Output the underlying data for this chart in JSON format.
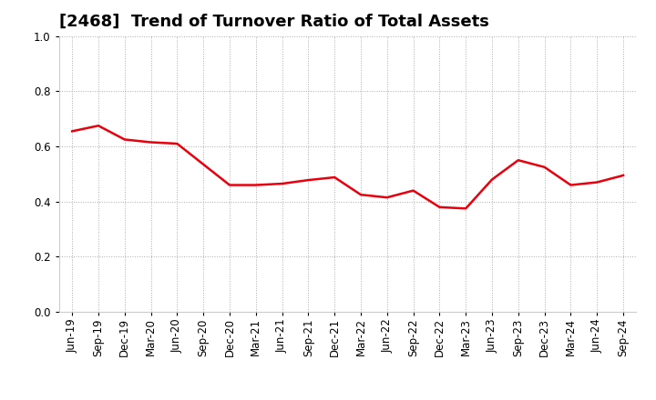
{
  "title": "[2468]  Trend of Turnover Ratio of Total Assets",
  "x_labels": [
    "Jun-19",
    "Sep-19",
    "Dec-19",
    "Mar-20",
    "Jun-20",
    "Sep-20",
    "Dec-20",
    "Mar-21",
    "Jun-21",
    "Sep-21",
    "Dec-21",
    "Mar-22",
    "Jun-22",
    "Sep-22",
    "Dec-22",
    "Mar-23",
    "Jun-23",
    "Sep-23",
    "Dec-23",
    "Mar-24",
    "Jun-24",
    "Sep-24"
  ],
  "y_values": [
    0.655,
    0.675,
    0.625,
    0.615,
    0.61,
    0.535,
    0.46,
    0.46,
    0.465,
    0.478,
    0.488,
    0.425,
    0.415,
    0.44,
    0.38,
    0.375,
    0.48,
    0.55,
    0.525,
    0.46,
    0.47,
    0.495
  ],
  "line_color": "#e8000d",
  "line_width": 1.8,
  "ylim": [
    0.0,
    1.0
  ],
  "yticks": [
    0.0,
    0.2,
    0.4,
    0.6,
    0.8,
    1.0
  ],
  "background_color": "#ffffff",
  "grid_color": "#aaaaaa",
  "title_fontsize": 13,
  "tick_fontsize": 8.5
}
